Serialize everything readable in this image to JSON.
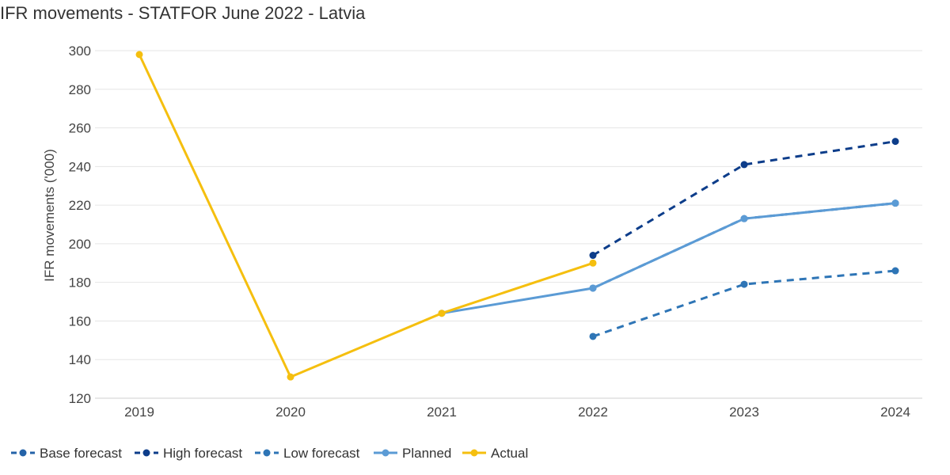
{
  "chart_data": {
    "type": "line",
    "title": "IFR movements - STATFOR June 2022 - Latvia",
    "xlabel": "",
    "ylabel": "IFR movements ('000)",
    "categories": [
      "2019",
      "2020",
      "2021",
      "2022",
      "2023",
      "2024"
    ],
    "ylim": [
      120,
      300
    ],
    "yticks": [
      120,
      140,
      160,
      180,
      200,
      220,
      240,
      260,
      280,
      300
    ],
    "grid": true,
    "legend": "bottom-left",
    "series": [
      {
        "name": "Base forecast",
        "color": "#2463a8",
        "dashed": true,
        "values": [
          null,
          null,
          null,
          177,
          213,
          221
        ]
      },
      {
        "name": "High forecast",
        "color": "#0d3d8a",
        "dashed": true,
        "values": [
          null,
          null,
          null,
          194,
          241,
          253
        ]
      },
      {
        "name": "Low forecast",
        "color": "#2e75b6",
        "dashed": true,
        "values": [
          null,
          null,
          null,
          152,
          179,
          186
        ]
      },
      {
        "name": "Planned",
        "color": "#5b9bd5",
        "dashed": false,
        "values": [
          null,
          null,
          164,
          177,
          213,
          221
        ]
      },
      {
        "name": "Actual",
        "color": "#f5bf0f",
        "dashed": false,
        "values": [
          298,
          131,
          164,
          190,
          null,
          null
        ]
      }
    ]
  }
}
